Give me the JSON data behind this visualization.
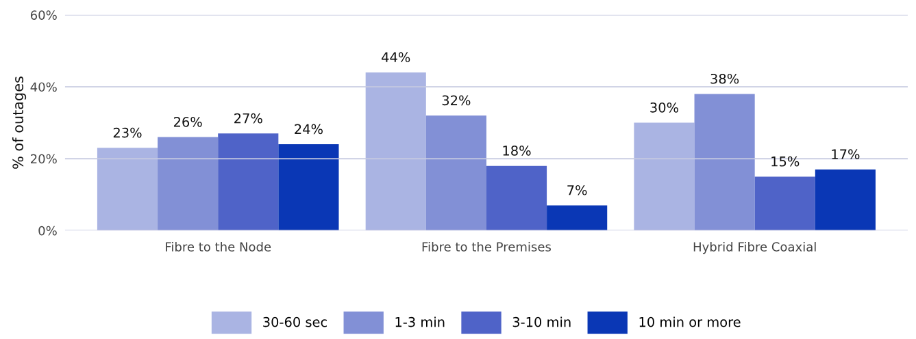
{
  "chart_data": {
    "type": "bar",
    "ylabel": "% of outages",
    "categories": [
      "Fibre to the Node",
      "Fibre to the Premises",
      "Hybrid Fibre Coaxial"
    ],
    "series": [
      {
        "name": "30-60 sec",
        "color": "#aab4e3",
        "values": [
          23,
          44,
          30
        ],
        "value_labels": [
          "23%",
          "44%",
          "30%"
        ]
      },
      {
        "name": "1-3 min",
        "color": "#8290d6",
        "values": [
          26,
          32,
          38
        ],
        "value_labels": [
          "26%",
          "32%",
          "38%"
        ]
      },
      {
        "name": "3-10 min",
        "color": "#4f63c8",
        "values": [
          27,
          18,
          15
        ],
        "value_labels": [
          "27%",
          "18%",
          "15%"
        ]
      },
      {
        "name": "10 min or more",
        "color": "#0a37b5",
        "values": [
          24,
          7,
          17
        ],
        "value_labels": [
          "24%",
          "7%",
          "17%"
        ]
      }
    ],
    "ylim": [
      0,
      60
    ],
    "yticks": [
      {
        "value": 0,
        "label": "0%"
      },
      {
        "value": 20,
        "label": "20%"
      },
      {
        "value": 40,
        "label": "40%"
      },
      {
        "value": 60,
        "label": "60%"
      }
    ],
    "grid": "y",
    "legend": "bottom"
  }
}
